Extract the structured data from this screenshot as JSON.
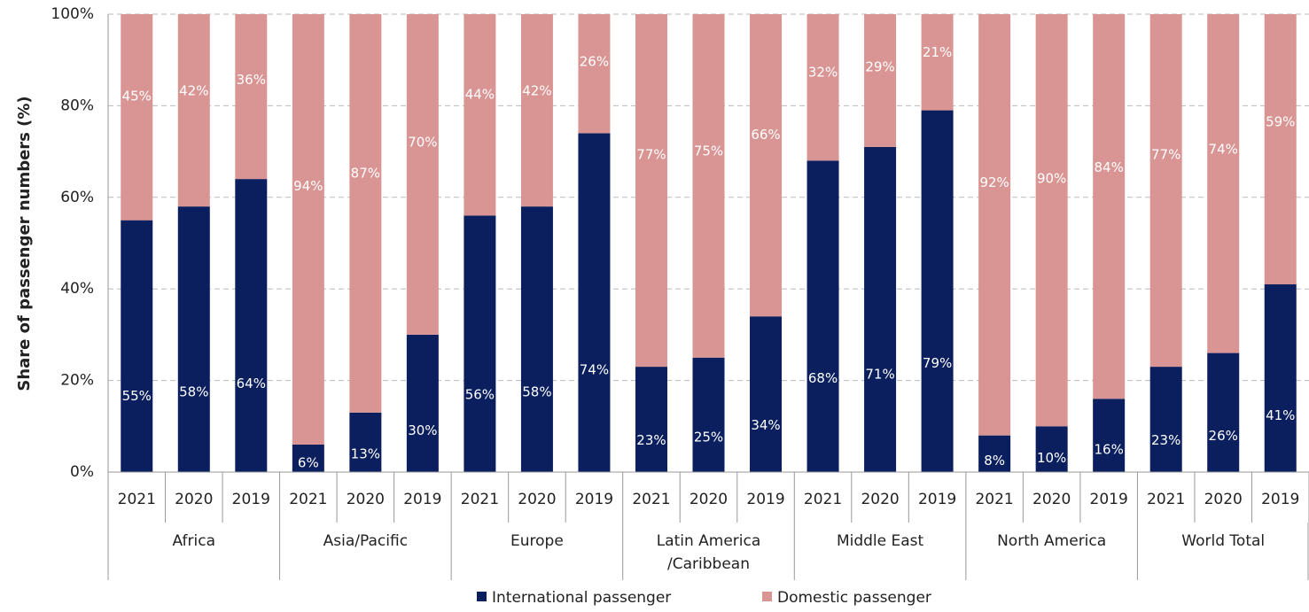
{
  "chart_data": {
    "type": "stacked_bar",
    "y_axis_label": "Share of passenger numbers (%)",
    "groups": [
      "Africa",
      "Asia/Pacific",
      "Europe",
      "Latin America\n/Caribbean",
      "Middle East",
      "North America",
      "World Total"
    ],
    "categories": [
      "2021",
      "2020",
      "2019",
      "2021",
      "2020",
      "2019",
      "2021",
      "2020",
      "2019",
      "2021",
      "2020",
      "2019",
      "2021",
      "2020",
      "2019",
      "2021",
      "2020",
      "2019",
      "2021",
      "2020",
      "2019"
    ],
    "series": [
      {
        "name": "International passenger",
        "color": "#0b1f5e",
        "values": [
          55,
          58,
          64,
          6,
          13,
          30,
          56,
          58,
          74,
          23,
          25,
          34,
          68,
          71,
          79,
          8,
          10,
          16,
          23,
          26,
          41
        ],
        "value_labels": [
          "55%",
          "58%",
          "64%",
          "6%",
          "13%",
          "30%",
          "56%",
          "58%",
          "74%",
          "23%",
          "25%",
          "34%",
          "68%",
          "71%",
          "79%",
          "8%",
          "10%",
          "16%",
          "23%",
          "26%",
          "41%"
        ]
      },
      {
        "name": "Domestic passenger",
        "color": "#d99594",
        "values": [
          45,
          42,
          36,
          94,
          87,
          70,
          44,
          42,
          26,
          77,
          75,
          66,
          32,
          29,
          21,
          92,
          90,
          84,
          77,
          74,
          59
        ],
        "value_labels": [
          "45%",
          "42%",
          "36%",
          "94%",
          "87%",
          "70%",
          "44%",
          "42%",
          "26%",
          "77%",
          "75%",
          "66%",
          "32%",
          "29%",
          "21%",
          "92%",
          "90%",
          "84%",
          "77%",
          "74%",
          "59%"
        ]
      }
    ],
    "ylim": [
      0,
      100
    ],
    "yticks": [
      {
        "value": 0,
        "label": "0%"
      },
      {
        "value": 20,
        "label": "20%"
      },
      {
        "value": 40,
        "label": "40%"
      },
      {
        "value": 60,
        "label": "60%"
      },
      {
        "value": 80,
        "label": "80%"
      },
      {
        "value": 100,
        "label": "100%"
      }
    ],
    "grid": true,
    "legend": "bottom"
  }
}
